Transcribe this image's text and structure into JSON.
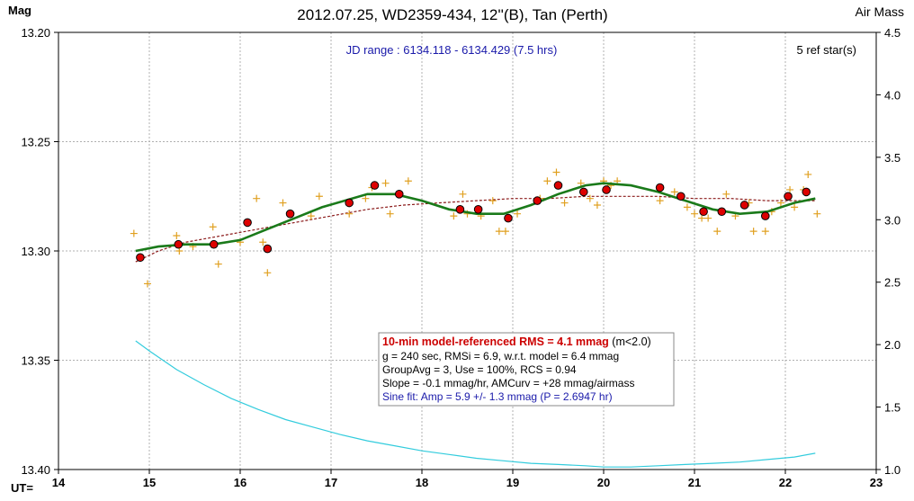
{
  "chart_data": {
    "type": "scatter",
    "title": "2012.07.25, WD2359-434, 12''(B), Tan (Perth)",
    "left_axis_title": "Mag",
    "right_axis_title": "Air Mass",
    "x_axis_prefix": "UT=",
    "jd_range_text": "JD range : 6134.118 - 6134.429 (7.5 hrs)",
    "ref_stars_text": "5 ref star(s)",
    "x_range": [
      14,
      23
    ],
    "y_range_mag": [
      13.2,
      13.4
    ],
    "y_mag_inverted": true,
    "y_range_airmass": [
      1.0,
      4.5
    ],
    "grid": true,
    "x_ticks": [
      "14",
      "15",
      "16",
      "17",
      "18",
      "19",
      "20",
      "21",
      "22",
      "23"
    ],
    "y_ticks_mag": [
      "13.20",
      "13.25",
      "13.30",
      "13.35",
      "13.40"
    ],
    "y_ticks_airmass": [
      "4.5",
      "4.0",
      "3.5",
      "3.0",
      "2.5",
      "2.0",
      "1.5",
      "1.0"
    ],
    "colors": {
      "raw_points": "#e0a020",
      "group_means": "#dd0000",
      "model_line": "#1a7a1a",
      "sine_fit": "#8b1a1a",
      "airmass": "#33ccdd",
      "grid": "#b0b0b0"
    },
    "raw_points": [
      [
        14.83,
        13.292
      ],
      [
        14.98,
        13.315
      ],
      [
        15.3,
        13.293
      ],
      [
        15.33,
        13.3
      ],
      [
        15.48,
        13.298
      ],
      [
        15.7,
        13.289
      ],
      [
        15.76,
        13.306
      ],
      [
        16.0,
        13.296
      ],
      [
        16.18,
        13.276
      ],
      [
        16.3,
        13.31
      ],
      [
        16.25,
        13.296
      ],
      [
        16.47,
        13.278
      ],
      [
        16.78,
        13.284
      ],
      [
        16.87,
        13.275
      ],
      [
        17.2,
        13.283
      ],
      [
        17.38,
        13.276
      ],
      [
        17.45,
        13.271
      ],
      [
        17.6,
        13.269
      ],
      [
        17.65,
        13.283
      ],
      [
        17.85,
        13.268
      ],
      [
        18.35,
        13.284
      ],
      [
        18.45,
        13.274
      ],
      [
        18.5,
        13.283
      ],
      [
        18.65,
        13.284
      ],
      [
        18.78,
        13.277
      ],
      [
        18.85,
        13.291
      ],
      [
        18.92,
        13.291
      ],
      [
        19.05,
        13.283
      ],
      [
        19.3,
        13.276
      ],
      [
        19.38,
        13.268
      ],
      [
        19.48,
        13.264
      ],
      [
        19.57,
        13.278
      ],
      [
        19.75,
        13.269
      ],
      [
        19.85,
        13.276
      ],
      [
        19.93,
        13.279
      ],
      [
        20.0,
        13.268
      ],
      [
        20.08,
        13.27
      ],
      [
        20.15,
        13.268
      ],
      [
        20.62,
        13.277
      ],
      [
        20.78,
        13.273
      ],
      [
        20.92,
        13.28
      ],
      [
        21.0,
        13.283
      ],
      [
        21.08,
        13.285
      ],
      [
        21.15,
        13.285
      ],
      [
        21.25,
        13.291
      ],
      [
        21.35,
        13.274
      ],
      [
        21.45,
        13.284
      ],
      [
        21.6,
        13.278
      ],
      [
        21.65,
        13.291
      ],
      [
        21.78,
        13.291
      ],
      [
        21.85,
        13.282
      ],
      [
        21.95,
        13.278
      ],
      [
        22.05,
        13.272
      ],
      [
        22.1,
        13.28
      ],
      [
        22.2,
        13.272
      ],
      [
        22.25,
        13.265
      ],
      [
        22.35,
        13.283
      ]
    ],
    "group_means": [
      [
        14.9,
        13.303
      ],
      [
        15.32,
        13.297
      ],
      [
        15.71,
        13.297
      ],
      [
        16.08,
        13.287
      ],
      [
        16.3,
        13.299
      ],
      [
        16.55,
        13.283
      ],
      [
        17.2,
        13.278
      ],
      [
        17.48,
        13.27
      ],
      [
        17.75,
        13.274
      ],
      [
        18.42,
        13.281
      ],
      [
        18.62,
        13.281
      ],
      [
        18.95,
        13.285
      ],
      [
        19.27,
        13.277
      ],
      [
        19.5,
        13.27
      ],
      [
        19.78,
        13.273
      ],
      [
        20.03,
        13.272
      ],
      [
        20.62,
        13.271
      ],
      [
        20.85,
        13.275
      ],
      [
        21.1,
        13.282
      ],
      [
        21.3,
        13.282
      ],
      [
        21.55,
        13.279
      ],
      [
        21.78,
        13.284
      ],
      [
        22.03,
        13.275
      ],
      [
        22.23,
        13.273
      ]
    ],
    "model_line": [
      [
        14.85,
        13.3
      ],
      [
        15.1,
        13.298
      ],
      [
        15.4,
        13.297
      ],
      [
        15.7,
        13.297
      ],
      [
        16.0,
        13.295
      ],
      [
        16.3,
        13.29
      ],
      [
        16.6,
        13.285
      ],
      [
        16.9,
        13.28
      ],
      [
        17.15,
        13.277
      ],
      [
        17.4,
        13.274
      ],
      [
        17.7,
        13.274
      ],
      [
        18.0,
        13.277
      ],
      [
        18.3,
        13.281
      ],
      [
        18.6,
        13.283
      ],
      [
        18.9,
        13.283
      ],
      [
        19.2,
        13.279
      ],
      [
        19.5,
        13.274
      ],
      [
        19.8,
        13.27
      ],
      [
        20.0,
        13.269
      ],
      [
        20.3,
        13.27
      ],
      [
        20.6,
        13.273
      ],
      [
        20.9,
        13.277
      ],
      [
        21.2,
        13.281
      ],
      [
        21.5,
        13.283
      ],
      [
        21.8,
        13.282
      ],
      [
        22.1,
        13.278
      ],
      [
        22.33,
        13.276
      ]
    ],
    "sine_fit_line": [
      [
        14.85,
        13.305
      ],
      [
        15.1,
        13.3
      ],
      [
        15.4,
        13.296
      ],
      [
        15.8,
        13.293
      ],
      [
        16.2,
        13.29
      ],
      [
        16.6,
        13.287
      ],
      [
        17.0,
        13.284
      ],
      [
        17.4,
        13.281
      ],
      [
        17.8,
        13.279
      ],
      [
        18.2,
        13.278
      ],
      [
        18.6,
        13.277
      ],
      [
        19.0,
        13.276
      ],
      [
        19.4,
        13.276
      ],
      [
        19.8,
        13.275
      ],
      [
        20.2,
        13.275
      ],
      [
        20.6,
        13.275
      ],
      [
        21.0,
        13.276
      ],
      [
        21.4,
        13.276
      ],
      [
        21.8,
        13.277
      ],
      [
        22.2,
        13.277
      ],
      [
        22.33,
        13.277
      ]
    ],
    "airmass_line": [
      [
        14.85,
        2.03
      ],
      [
        15.0,
        1.95
      ],
      [
        15.3,
        1.8
      ],
      [
        15.6,
        1.68
      ],
      [
        15.9,
        1.57
      ],
      [
        16.2,
        1.48
      ],
      [
        16.5,
        1.4
      ],
      [
        16.8,
        1.34
      ],
      [
        17.1,
        1.28
      ],
      [
        17.4,
        1.23
      ],
      [
        17.7,
        1.19
      ],
      [
        18.0,
        1.15
      ],
      [
        18.3,
        1.12
      ],
      [
        18.6,
        1.09
      ],
      [
        18.9,
        1.07
      ],
      [
        19.2,
        1.05
      ],
      [
        19.5,
        1.04
      ],
      [
        19.8,
        1.03
      ],
      [
        20.0,
        1.02
      ],
      [
        20.3,
        1.02
      ],
      [
        20.6,
        1.03
      ],
      [
        20.9,
        1.04
      ],
      [
        21.2,
        1.05
      ],
      [
        21.5,
        1.06
      ],
      [
        21.8,
        1.08
      ],
      [
        22.1,
        1.1
      ],
      [
        22.33,
        1.13
      ]
    ],
    "stats_box": {
      "line1_bold": "10-min model-referenced RMS = 4.1 mmag",
      "line1_rest": " (m<2.0)",
      "line2": "g = 240 sec, RMSi = 6.9, w.r.t. model = 6.4 mmag",
      "line3": "GroupAvg  = 3, Use = 100%, RCS = 0.94",
      "line4": "Slope = -0.1 mmag/hr, AMCurv  = +28 mmag/airmass",
      "line5": "Sine fit: Amp = 5.9 +/- 1.3 mmag (P = 2.6947  hr)"
    }
  }
}
